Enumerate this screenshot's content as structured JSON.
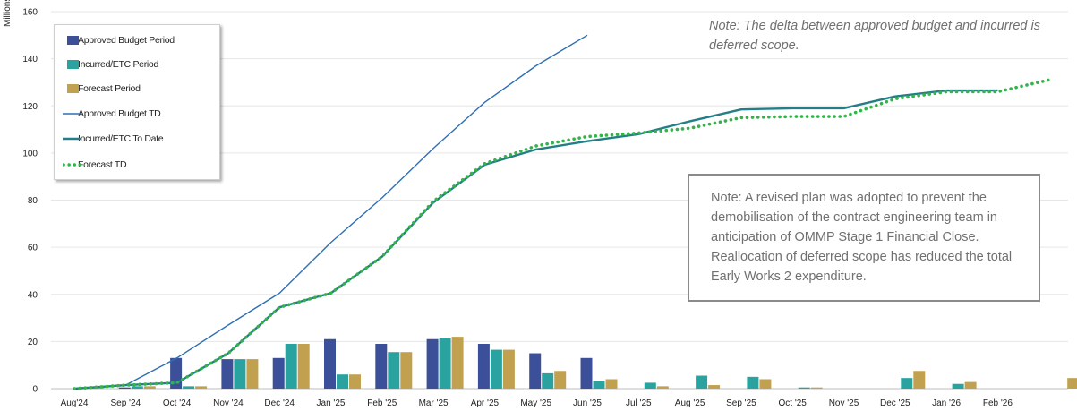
{
  "chart_data": {
    "type": "bar+line",
    "ylabel": "Millions",
    "ylim": [
      0,
      160
    ],
    "yticks": [
      0,
      20,
      40,
      60,
      80,
      100,
      120,
      140,
      160
    ],
    "grid": true,
    "legend_position": "top-left",
    "categories": [
      "Aug'24",
      "Sep '24",
      "Oct '24",
      "Nov '24",
      "Dec '24",
      "Jan '25",
      "Feb '25",
      "Mar '25",
      "Apr '25",
      "May '25",
      "Jun '25",
      "Jul '25",
      "Aug '25",
      "Sep '25",
      "Oct '25",
      "Nov '25",
      "Dec '25",
      "Jan '26",
      "Feb '26",
      ""
    ],
    "bar_series": [
      {
        "name": "Approved Budget Period",
        "color": "#3c4f99",
        "values": [
          0,
          0.5,
          13,
          12.5,
          13,
          21,
          19,
          21,
          19,
          15,
          13,
          null,
          null,
          null,
          null,
          null,
          null,
          null,
          null,
          null
        ]
      },
      {
        "name": "Incurred/ETC Period",
        "color": "#2aa3a0",
        "values": [
          0.3,
          1,
          1,
          12.5,
          19,
          6,
          15.5,
          21.5,
          16.5,
          6.5,
          3.3,
          2.5,
          5.5,
          5,
          0.5,
          0,
          4.5,
          2,
          0,
          null
        ]
      },
      {
        "name": "Forecast Period",
        "color": "#c1a150",
        "values": [
          0.3,
          1,
          1,
          12.5,
          19,
          6,
          15.5,
          22,
          16.5,
          7.5,
          4,
          1,
          1.5,
          4,
          0.5,
          0,
          7.5,
          2.8,
          0,
          4.5
        ]
      }
    ],
    "line_series": [
      {
        "name": "Approved Budget TD",
        "color": "#2f6fb3",
        "style": "thin",
        "values": [
          0,
          1.5,
          13,
          27,
          40.5,
          62,
          81,
          102,
          121.5,
          137,
          150
        ]
      },
      {
        "name": "Incurred/ETC To Date",
        "color": "#237f85",
        "style": "thick",
        "values": [
          0,
          1.5,
          2.5,
          15,
          34.5,
          40.5,
          56,
          79,
          95,
          101.5,
          105,
          108,
          113.5,
          118.5,
          119,
          119,
          124,
          126.5,
          126.5
        ]
      },
      {
        "name": "Forecast TD",
        "color": "#33b34a",
        "style": "dotted",
        "values": [
          0,
          1.5,
          2.5,
          15,
          34.5,
          40.5,
          56,
          79.5,
          95.5,
          103,
          107,
          108.5,
          110.5,
          115,
          115.5,
          115.5,
          123,
          126,
          126,
          131
        ]
      }
    ],
    "annotations": {
      "top_note": "Note: The delta between approved budget and incurred is deferred scope.",
      "box_note": "Note: A revised plan was adopted to prevent the demobilisation of the contract engineering team in anticipation of OMMP Stage 1 Financial Close. Reallocation of deferred scope has reduced the total Early Works 2 expenditure."
    }
  }
}
